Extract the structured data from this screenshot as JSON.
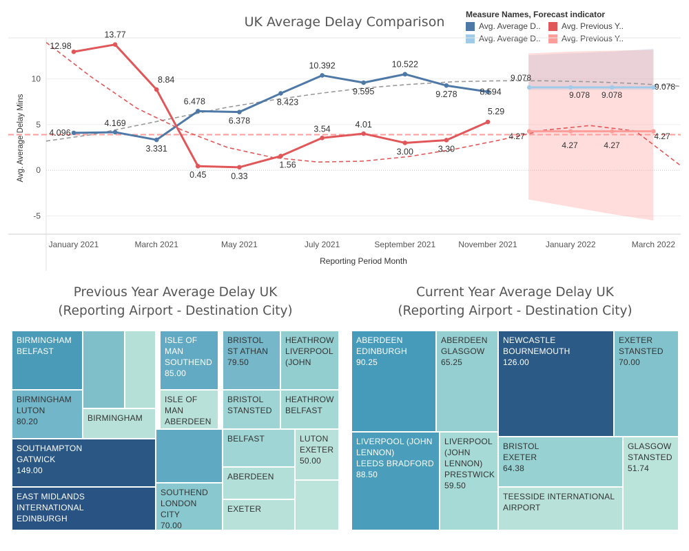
{
  "line_chart": {
    "title": "UK Average Delay Comparison",
    "legend_title": "Measure Names, Forecast indicator",
    "legend_items": [
      {
        "label": "Avg. Average D..",
        "color": "#4e79a7"
      },
      {
        "label": "Avg. Previous Y..",
        "color": "#e15759"
      },
      {
        "label": "Avg. Average D..",
        "color": "#a0cbe8"
      },
      {
        "label": "Avg. Previous Y..",
        "color": "#ff9d9a"
      }
    ]
  },
  "chart_data": [
    {
      "type": "line",
      "title": "UK Average Delay Comparison",
      "xlabel": "Reporting Period Month",
      "ylabel": "Avg. Average Delay Mins",
      "ylim": [
        -7,
        14.5
      ],
      "yticks": [
        -5,
        0,
        5,
        10
      ],
      "x_tick_labels": [
        "January 2021",
        "March 2021",
        "May 2021",
        "July 2021",
        "September 2021",
        "November 2021",
        "January 2022",
        "March 2022"
      ],
      "x": [
        "2021-01",
        "2021-02",
        "2021-03",
        "2021-04",
        "2021-05",
        "2021-06",
        "2021-07",
        "2021-08",
        "2021-09",
        "2021-10",
        "2021-11"
      ],
      "series": [
        {
          "name": "Avg. Average D..",
          "color": "#4e79a7",
          "values": [
            4.096,
            4.169,
            3.331,
            6.478,
            6.378,
            8.423,
            10.392,
            9.595,
            10.522,
            9.278,
            8.594
          ],
          "labels": [
            "4.096",
            "4.169",
            "3.331",
            "6.478",
            "6.378",
            "8.423",
            "10.392",
            "9.595",
            "10.522",
            "9.278",
            "8.594"
          ]
        },
        {
          "name": "Avg. Previous Y..",
          "color": "#e15759",
          "values": [
            12.98,
            13.77,
            8.84,
            0.45,
            0.33,
            1.56,
            3.54,
            4.01,
            3.0,
            3.3,
            5.29
          ],
          "labels": [
            "12.98",
            "13.77",
            "8.84",
            "0.45",
            "0.33",
            "1.56",
            "3.54",
            "4.01",
            "3.00",
            "3.30",
            "5.29"
          ]
        }
      ],
      "forecast": {
        "x": [
          "2021-12",
          "2022-01",
          "2022-02",
          "2022-03"
        ],
        "series": [
          {
            "name": "Avg. Average D..",
            "color": "#a0cbe8",
            "values": [
              9.078,
              9.078,
              9.078,
              9.078
            ],
            "labels": [
              "9.078",
              "9.078",
              "9.078",
              "9.078"
            ],
            "band_upper": [
              12.6,
              12.8,
              13.0,
              13.3
            ],
            "band_lower": [
              8.8,
              8.8,
              8.8,
              8.8
            ]
          },
          {
            "name": "Avg. Previous Y..",
            "color": "#ff9d9a",
            "values": [
              4.27,
              4.27,
              4.27,
              4.27
            ],
            "labels": [
              "4.27",
              "4.27",
              "4.27",
              "4.27"
            ],
            "band_upper": [
              12.8,
              13.0,
              13.1,
              13.2
            ],
            "band_lower": [
              -3.2,
              -4.0,
              -4.8,
              -5.5
            ]
          }
        ]
      },
      "reference_line": {
        "value": 3.9,
        "color": "#ff9d9a"
      },
      "trend_lines": [
        {
          "series": "Avg. Average D..",
          "color": "#999999",
          "style": "dashed",
          "values": [
            3.2,
            3.9,
            4.9,
            5.9,
            6.9,
            7.7,
            8.4,
            9.0,
            9.4,
            9.7,
            9.8,
            9.8,
            9.7,
            9.5,
            9.2
          ]
        },
        {
          "series": "Avg. Previous Y..",
          "color": "#e15759",
          "style": "dashed",
          "values": [
            14.0,
            10.2,
            6.8,
            4.4,
            2.5,
            1.4,
            0.9,
            1.0,
            1.5,
            2.3,
            3.3,
            4.4,
            4.9,
            4.3,
            0.5
          ]
        }
      ],
      "grid": true
    },
    {
      "type": "treemap",
      "title": "Previous Year Average Delay UK",
      "subtitle": "(Reporting Airport - Destination City)",
      "tiles": [
        {
          "lines": [
            "BIRMINGHAM",
            "BELFAST"
          ],
          "color": "#4a9bb8"
        },
        {
          "lines": [],
          "color": "#7fbfca"
        },
        {
          "lines": [],
          "color": "#b5e0d8"
        },
        {
          "lines": [
            "BIRMINGHAM",
            "LUTON",
            "80.20"
          ],
          "value": 80.2,
          "color": "#72b6c9"
        },
        {
          "lines": [
            "BIRMINGHAM"
          ],
          "color": "#b8e2d9"
        },
        {
          "lines": [
            "ISLE OF MAN",
            "SOUTHEND",
            "85.00"
          ],
          "value": 85.0,
          "color": "#62aac3"
        },
        {
          "lines": [
            "ISLE OF MAN",
            "ABERDEEN"
          ],
          "color": "#b8e2d9"
        },
        {
          "lines": [
            "BRISTOL",
            "ST ATHAN",
            "79.50"
          ],
          "value": 79.5,
          "color": "#76b8c9"
        },
        {
          "lines": [
            "BRISTOL",
            "STANSTED"
          ],
          "color": "#9ed4d3"
        },
        {
          "lines": [
            "HEATHROW",
            "LIVERPOOL",
            "(JOHN"
          ],
          "color": "#92cdd0"
        },
        {
          "lines": [
            "HEATHROW",
            "BELFAST"
          ],
          "color": "#a3d8d5"
        },
        {
          "lines": [
            "SOUTHAMPTON",
            "GATWICK",
            "149.00"
          ],
          "value": 149.0,
          "color": "#2b5784"
        },
        {
          "lines": [],
          "color": "#5fa9c2"
        },
        {
          "lines": [
            "BELFAST"
          ],
          "color": "#9fd5d4"
        },
        {
          "lines": [
            "LUTON",
            "EXETER",
            "50.00"
          ],
          "value": 50.0,
          "color": "#b8e2d9"
        },
        {
          "lines": [
            "ABERDEEN"
          ],
          "color": "#b2dfd8"
        },
        {
          "lines": [
            "EAST MIDLANDS INTERNATIONAL",
            "EDINBURGH"
          ],
          "color": "#285383"
        },
        {
          "lines": [
            "SOUTHEND",
            "LONDON CITY",
            "70.00"
          ],
          "value": 70.0,
          "color": "#8ac8cf"
        },
        {
          "lines": [
            "EXETER"
          ],
          "color": "#b8e2d9"
        },
        {
          "lines": [],
          "color": "#bde4db"
        }
      ]
    },
    {
      "type": "treemap",
      "title": "Current Year Average Delay UK",
      "subtitle": "(Reporting Airport - Destination City)",
      "tiles": [
        {
          "lines": [
            "ABERDEEN",
            "EDINBURGH",
            "90.25"
          ],
          "value": 90.25,
          "color": "#469bbb"
        },
        {
          "lines": [
            "ABERDEEN",
            "GLASGOW",
            "65.25"
          ],
          "value": 65.25,
          "color": "#96cfd1"
        },
        {
          "lines": [
            "NEWCASTLE",
            "BOURNEMOUTH",
            "126.00"
          ],
          "value": 126.0,
          "color": "#2c5a86"
        },
        {
          "lines": [
            "EXETER",
            "STANSTED",
            "70.00"
          ],
          "value": 70.0,
          "color": "#82c2cc"
        },
        {
          "lines": [
            "LIVERPOOL (JOHN",
            "LENNON)",
            "LEEDS BRADFORD",
            "88.50"
          ],
          "value": 88.5,
          "color": "#4a9ebc"
        },
        {
          "lines": [
            "LIVERPOOL",
            "(JOHN",
            "LENNON)",
            "PRESTWICK",
            "59.50"
          ],
          "value": 59.5,
          "color": "#a6dad6"
        },
        {
          "lines": [
            "BRISTOL",
            "EXETER",
            "64.38"
          ],
          "value": 64.38,
          "color": "#98d1d2"
        },
        {
          "lines": [
            "GLASGOW",
            "STANSTED",
            "51.74"
          ],
          "value": 51.74,
          "color": "#bae3da"
        },
        {
          "lines": [
            "TEESSIDE INTERNATIONAL",
            "AIRPORT"
          ],
          "color": "#b8e2d9"
        }
      ]
    }
  ]
}
